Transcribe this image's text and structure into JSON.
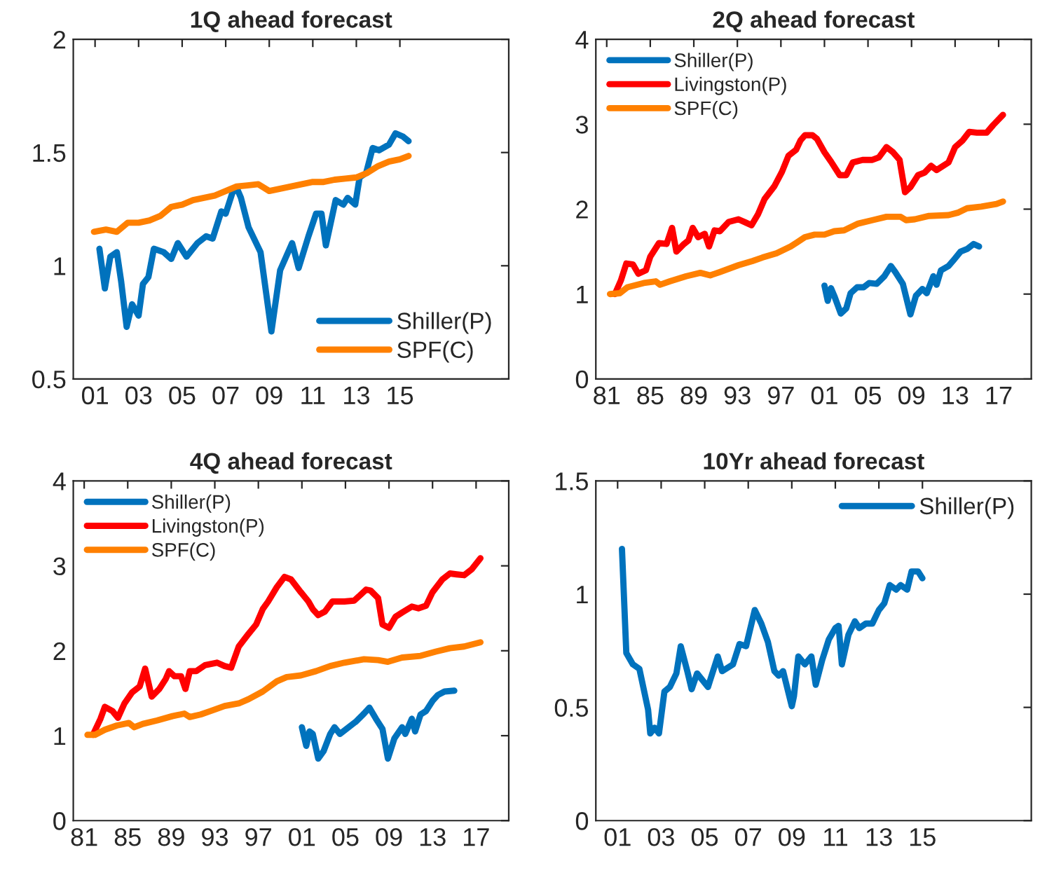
{
  "chart_data": [
    {
      "type": "line",
      "title": "1Q ahead forecast",
      "xlim": [
        2000,
        2020
      ],
      "ylim": [
        0.5,
        2
      ],
      "xticks": [
        {
          "value": 2001,
          "label": "01"
        },
        {
          "value": 2003,
          "label": "03"
        },
        {
          "value": 2005,
          "label": "05"
        },
        {
          "value": 2007,
          "label": "07"
        },
        {
          "value": 2009,
          "label": "09"
        },
        {
          "value": 2011,
          "label": "11"
        },
        {
          "value": 2013,
          "label": "13"
        },
        {
          "value": 2015,
          "label": "15"
        }
      ],
      "yticks": [
        0.5,
        1,
        1.5,
        2
      ],
      "grid": false,
      "legend": "bottom right",
      "line_style": "solid",
      "marker": "none",
      "series": [
        {
          "name": "Shiller(P)",
          "color": "#0072bd",
          "x": [
            2001.2,
            2001.45,
            2001.7,
            2002.0,
            2002.2,
            2002.45,
            2002.7,
            2003.0,
            2003.2,
            2003.45,
            2003.7,
            2004.15,
            2004.5,
            2004.8,
            2005.2,
            2005.7,
            2006.1,
            2006.4,
            2006.8,
            2007.0,
            2007.3,
            2007.5,
            2007.7,
            2008.05,
            2008.6,
            2009.1,
            2009.5,
            2010.05,
            2010.35,
            2010.8,
            2011.15,
            2011.4,
            2011.6,
            2012.05,
            2012.4,
            2012.6,
            2012.95,
            2013.15,
            2013.45,
            2013.75,
            2014.05,
            2014.5,
            2014.8,
            2015.15,
            2015.4
          ],
          "values": [
            1.075,
            0.9,
            1.04,
            1.06,
            0.93,
            0.73,
            0.83,
            0.78,
            0.92,
            0.95,
            1.075,
            1.06,
            1.03,
            1.1,
            1.04,
            1.1,
            1.13,
            1.12,
            1.24,
            1.23,
            1.32,
            1.345,
            1.3,
            1.17,
            1.06,
            0.71,
            0.98,
            1.1,
            0.99,
            1.13,
            1.23,
            1.23,
            1.09,
            1.29,
            1.27,
            1.3,
            1.27,
            1.39,
            1.41,
            1.52,
            1.51,
            1.535,
            1.585,
            1.57,
            1.55
          ]
        },
        {
          "name": "SPF(C)",
          "color": "#ff8000",
          "x": [
            2000.95,
            2001.5,
            2002.0,
            2002.5,
            2003.0,
            2003.5,
            2004.0,
            2004.5,
            2005.0,
            2005.5,
            2006.0,
            2006.5,
            2007.0,
            2007.5,
            2008.0,
            2008.5,
            2009.0,
            2009.5,
            2010.0,
            2010.5,
            2011.0,
            2011.5,
            2012.0,
            2012.5,
            2013.0,
            2013.5,
            2014.0,
            2014.5,
            2015.0,
            2015.4
          ],
          "values": [
            1.15,
            1.16,
            1.15,
            1.19,
            1.19,
            1.2,
            1.22,
            1.26,
            1.27,
            1.29,
            1.3,
            1.31,
            1.33,
            1.35,
            1.355,
            1.36,
            1.33,
            1.34,
            1.35,
            1.36,
            1.37,
            1.37,
            1.38,
            1.385,
            1.39,
            1.41,
            1.44,
            1.46,
            1.47,
            1.485
          ]
        }
      ]
    },
    {
      "type": "line",
      "title": "2Q ahead forecast",
      "xlim": [
        1980,
        2020
      ],
      "ylim": [
        0,
        4
      ],
      "xticks": [
        {
          "value": 1981,
          "label": "81"
        },
        {
          "value": 1985,
          "label": "85"
        },
        {
          "value": 1989,
          "label": "89"
        },
        {
          "value": 1993,
          "label": "93"
        },
        {
          "value": 1997,
          "label": "97"
        },
        {
          "value": 2001,
          "label": "01"
        },
        {
          "value": 2005,
          "label": "05"
        },
        {
          "value": 2009,
          "label": "09"
        },
        {
          "value": 2013,
          "label": "13"
        },
        {
          "value": 2017,
          "label": "17"
        }
      ],
      "yticks": [
        0,
        1,
        2,
        3,
        4
      ],
      "grid": false,
      "legend": "top left",
      "line_style": "solid",
      "marker": "none",
      "series": [
        {
          "name": "Shiller(P)",
          "color": "#0072bd",
          "x": [
            2001.0,
            2001.3,
            2001.6,
            2001.9,
            2002.5,
            2003.0,
            2003.4,
            2004.0,
            2004.6,
            2005.1,
            2005.8,
            2006.5,
            2007.1,
            2007.5,
            2008.2,
            2008.9,
            2009.4,
            2010.0,
            2010.4,
            2011.0,
            2011.3,
            2011.7,
            2012.4,
            2012.8,
            2013.5,
            2014.1,
            2014.7,
            2015.2
          ],
          "values": [
            1.1,
            0.92,
            1.07,
            0.98,
            0.77,
            0.83,
            1.01,
            1.08,
            1.08,
            1.13,
            1.12,
            1.21,
            1.33,
            1.26,
            1.12,
            0.76,
            0.98,
            1.06,
            1.01,
            1.21,
            1.11,
            1.28,
            1.33,
            1.39,
            1.5,
            1.53,
            1.59,
            1.56
          ]
        },
        {
          "name": "Livingston(P)",
          "color": "#ff0000",
          "x": [
            1981.75,
            1982.3,
            1982.8,
            1983.4,
            1983.9,
            1984.6,
            1985.0,
            1985.8,
            1986.5,
            1987.0,
            1987.4,
            1988.1,
            1988.5,
            1988.9,
            1989.4,
            1990.0,
            1990.4,
            1990.9,
            1991.4,
            1992.2,
            1993.1,
            1993.8,
            1994.3,
            1994.9,
            1995.5,
            1996.4,
            1997.1,
            1997.7,
            1998.4,
            1998.8,
            1999.2,
            1999.9,
            2000.3,
            2001.0,
            2001.6,
            2002.4,
            2003.0,
            2003.6,
            2004.5,
            2005.4,
            2006.0,
            2006.7,
            2007.3,
            2007.9,
            2008.4,
            2008.9,
            2009.6,
            2010.2,
            2010.8,
            2011.3,
            2011.9,
            2012.4,
            2013.0,
            2013.7,
            2014.3,
            2015.0,
            2015.9,
            2016.5,
            2017.4
          ],
          "values": [
            1.0,
            1.16,
            1.36,
            1.35,
            1.24,
            1.28,
            1.44,
            1.6,
            1.59,
            1.78,
            1.5,
            1.59,
            1.63,
            1.78,
            1.67,
            1.71,
            1.56,
            1.75,
            1.74,
            1.85,
            1.88,
            1.84,
            1.81,
            1.94,
            2.12,
            2.27,
            2.44,
            2.63,
            2.7,
            2.81,
            2.87,
            2.87,
            2.83,
            2.67,
            2.56,
            2.4,
            2.4,
            2.55,
            2.58,
            2.58,
            2.61,
            2.73,
            2.67,
            2.58,
            2.2,
            2.26,
            2.4,
            2.43,
            2.51,
            2.46,
            2.51,
            2.55,
            2.73,
            2.81,
            2.91,
            2.9,
            2.9,
            2.99,
            3.11
          ]
        },
        {
          "name": "SPF(C)",
          "color": "#ff8000",
          "x": [
            1981.3,
            1982.2,
            1982.9,
            1984.4,
            1985.5,
            1985.9,
            1986.8,
            1988.3,
            1989.6,
            1990.5,
            1991.4,
            1993.1,
            1994.4,
            1995.3,
            1996.6,
            1997.9,
            1998.5,
            1999.2,
            2000.1,
            2001.0,
            2001.9,
            2002.8,
            2004.1,
            2005.4,
            2006.7,
            2008.0,
            2008.5,
            2009.3,
            2010.6,
            2012.4,
            2013.3,
            2014.1,
            2015.4,
            2016.8,
            2017.4
          ],
          "values": [
            1.0,
            1.01,
            1.08,
            1.13,
            1.15,
            1.11,
            1.15,
            1.21,
            1.25,
            1.22,
            1.26,
            1.34,
            1.39,
            1.43,
            1.48,
            1.56,
            1.61,
            1.67,
            1.7,
            1.7,
            1.74,
            1.75,
            1.83,
            1.87,
            1.91,
            1.91,
            1.87,
            1.88,
            1.92,
            1.93,
            1.96,
            2.01,
            2.03,
            2.06,
            2.09
          ]
        }
      ]
    },
    {
      "type": "line",
      "title": "4Q ahead forecast",
      "xlim": [
        1980,
        2020
      ],
      "ylim": [
        0,
        4
      ],
      "xticks": [
        {
          "value": 1981,
          "label": "81"
        },
        {
          "value": 1985,
          "label": "85"
        },
        {
          "value": 1989,
          "label": "89"
        },
        {
          "value": 1993,
          "label": "93"
        },
        {
          "value": 1997,
          "label": "97"
        },
        {
          "value": 2001,
          "label": "01"
        },
        {
          "value": 2005,
          "label": "05"
        },
        {
          "value": 2009,
          "label": "09"
        },
        {
          "value": 2013,
          "label": "13"
        },
        {
          "value": 2017,
          "label": "17"
        }
      ],
      "yticks": [
        0,
        1,
        2,
        3,
        4
      ],
      "grid": false,
      "legend": "top left",
      "line_style": "solid",
      "marker": "none",
      "series": [
        {
          "name": "Shiller(P)",
          "color": "#0072bd",
          "x": [
            2001.0,
            2001.4,
            2001.7,
            2002.0,
            2002.5,
            2003.0,
            2003.6,
            2004.0,
            2004.5,
            2005.1,
            2006.0,
            2006.7,
            2007.2,
            2007.8,
            2008.4,
            2008.9,
            2009.5,
            2010.2,
            2010.5,
            2011.1,
            2011.4,
            2011.9,
            2012.4,
            2013.0,
            2013.5,
            2014.1,
            2015.0
          ],
          "values": [
            1.1,
            0.88,
            1.05,
            1.02,
            0.73,
            0.82,
            1.02,
            1.1,
            1.02,
            1.08,
            1.17,
            1.26,
            1.33,
            1.2,
            1.08,
            0.73,
            0.97,
            1.1,
            1.02,
            1.2,
            1.05,
            1.25,
            1.29,
            1.41,
            1.48,
            1.52,
            1.53
          ]
        },
        {
          "name": "Livingston(P)",
          "color": "#ff0000",
          "x": [
            1981.8,
            1982.5,
            1982.9,
            1983.6,
            1984.1,
            1984.7,
            1985.4,
            1986.1,
            1986.6,
            1987.2,
            1987.9,
            1988.5,
            1988.8,
            1989.3,
            1989.9,
            1990.3,
            1990.7,
            1991.3,
            1992.1,
            1993.2,
            1993.9,
            1994.5,
            1995.2,
            1996.1,
            1996.8,
            1997.4,
            1997.9,
            1998.7,
            1999.4,
            2000.0,
            2000.9,
            2001.6,
            2002.0,
            2002.5,
            2003.1,
            2003.8,
            2004.9,
            2005.8,
            2006.4,
            2006.9,
            2007.3,
            2008.0,
            2008.4,
            2009.0,
            2009.6,
            2010.2,
            2011.1,
            2011.7,
            2012.4,
            2013.0,
            2013.9,
            2014.6,
            2015.2,
            2015.9,
            2016.6,
            2017.4
          ],
          "values": [
            1.01,
            1.2,
            1.34,
            1.29,
            1.21,
            1.38,
            1.51,
            1.58,
            1.79,
            1.46,
            1.55,
            1.67,
            1.76,
            1.7,
            1.7,
            1.55,
            1.76,
            1.76,
            1.83,
            1.86,
            1.82,
            1.8,
            2.05,
            2.2,
            2.31,
            2.49,
            2.58,
            2.75,
            2.87,
            2.84,
            2.69,
            2.58,
            2.49,
            2.42,
            2.46,
            2.58,
            2.58,
            2.59,
            2.66,
            2.72,
            2.71,
            2.62,
            2.31,
            2.27,
            2.4,
            2.45,
            2.52,
            2.5,
            2.53,
            2.69,
            2.84,
            2.91,
            2.9,
            2.89,
            2.96,
            3.09
          ]
        },
        {
          "name": "SPF(C)",
          "color": "#ff8000",
          "x": [
            1981.3,
            1982.0,
            1982.9,
            1984.0,
            1985.1,
            1985.6,
            1986.4,
            1987.7,
            1989.1,
            1990.2,
            1990.7,
            1991.7,
            1992.6,
            1993.9,
            1995.2,
            1996.1,
            1997.4,
            1998.7,
            1999.6,
            2000.9,
            2002.3,
            2003.6,
            2004.9,
            2006.7,
            2008.0,
            2008.9,
            2010.2,
            2011.9,
            2013.3,
            2014.6,
            2015.9,
            2017.4
          ],
          "values": [
            1.01,
            1.01,
            1.07,
            1.12,
            1.15,
            1.1,
            1.14,
            1.18,
            1.23,
            1.26,
            1.22,
            1.25,
            1.29,
            1.35,
            1.38,
            1.43,
            1.52,
            1.64,
            1.69,
            1.71,
            1.76,
            1.82,
            1.86,
            1.9,
            1.89,
            1.87,
            1.92,
            1.94,
            1.99,
            2.03,
            2.05,
            2.1
          ]
        }
      ]
    },
    {
      "type": "line",
      "title": "10Yr ahead forecast",
      "xlim": [
        2000,
        2020
      ],
      "ylim": [
        0,
        1.5
      ],
      "xticks": [
        {
          "value": 2001,
          "label": "01"
        },
        {
          "value": 2003,
          "label": "03"
        },
        {
          "value": 2005,
          "label": "05"
        },
        {
          "value": 2007,
          "label": "07"
        },
        {
          "value": 2009,
          "label": "09"
        },
        {
          "value": 2011,
          "label": "11"
        },
        {
          "value": 2013,
          "label": "13"
        },
        {
          "value": 2015,
          "label": "15"
        }
      ],
      "yticks": [
        0,
        0.5,
        1,
        1.5
      ],
      "grid": false,
      "legend": "top right",
      "line_style": "solid",
      "marker": "none",
      "series": [
        {
          "name": "Shiller(P)",
          "color": "#0072bd",
          "x": [
            2001.2,
            2001.4,
            2001.7,
            2002.0,
            2002.4,
            2002.5,
            2002.7,
            2002.9,
            2003.15,
            2003.4,
            2003.7,
            2003.9,
            2004.2,
            2004.4,
            2004.65,
            2005.15,
            2005.6,
            2005.8,
            2006.3,
            2006.6,
            2006.9,
            2007.3,
            2007.6,
            2007.9,
            2008.2,
            2008.4,
            2008.6,
            2009.0,
            2009.1,
            2009.3,
            2009.6,
            2009.9,
            2010.1,
            2010.4,
            2010.7,
            2011.0,
            2011.15,
            2011.3,
            2011.6,
            2011.9,
            2012.1,
            2012.4,
            2012.7,
            2013.0,
            2013.25,
            2013.5,
            2013.8,
            2014.0,
            2014.3,
            2014.5,
            2014.8,
            2015.0
          ],
          "values": [
            1.2,
            0.74,
            0.69,
            0.67,
            0.49,
            0.385,
            0.41,
            0.385,
            0.57,
            0.59,
            0.65,
            0.77,
            0.66,
            0.58,
            0.65,
            0.59,
            0.725,
            0.66,
            0.69,
            0.78,
            0.77,
            0.93,
            0.87,
            0.79,
            0.66,
            0.64,
            0.66,
            0.505,
            0.55,
            0.725,
            0.69,
            0.725,
            0.6,
            0.71,
            0.8,
            0.85,
            0.86,
            0.69,
            0.82,
            0.88,
            0.85,
            0.87,
            0.87,
            0.93,
            0.96,
            1.04,
            1.02,
            1.04,
            1.02,
            1.1,
            1.1,
            1.07
          ]
        }
      ]
    }
  ]
}
